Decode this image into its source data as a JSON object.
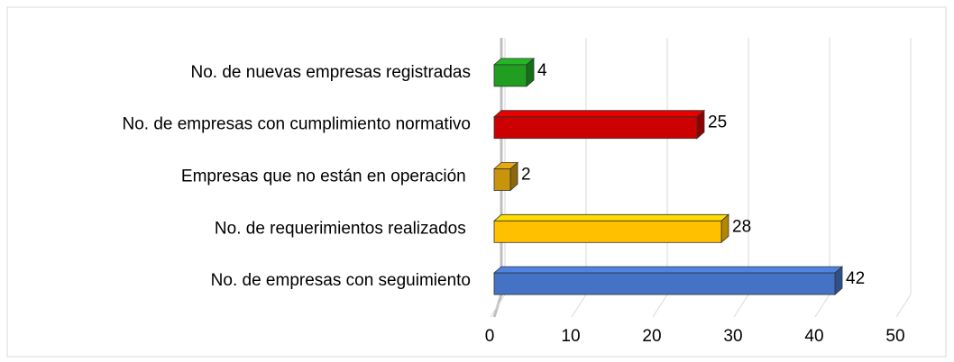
{
  "chart_data": {
    "type": "bar3d_horizontal",
    "categories": [
      "No. de nuevas empresas registradas",
      "No. de empresas con cumplimiento normativo",
      "Empresas que no están en operación ",
      "No. de requerimientos realizados ",
      "No. de empresas con seguimiento"
    ],
    "values": [
      4,
      25,
      2,
      28,
      42
    ],
    "colors": [
      "#1f9e1f",
      "#cc0000",
      "#c8940e",
      "#ffc000",
      "#4472c4"
    ],
    "xlim": [
      0,
      50
    ],
    "xticks": [
      0,
      10,
      20,
      30,
      40,
      50
    ],
    "grid": true
  }
}
